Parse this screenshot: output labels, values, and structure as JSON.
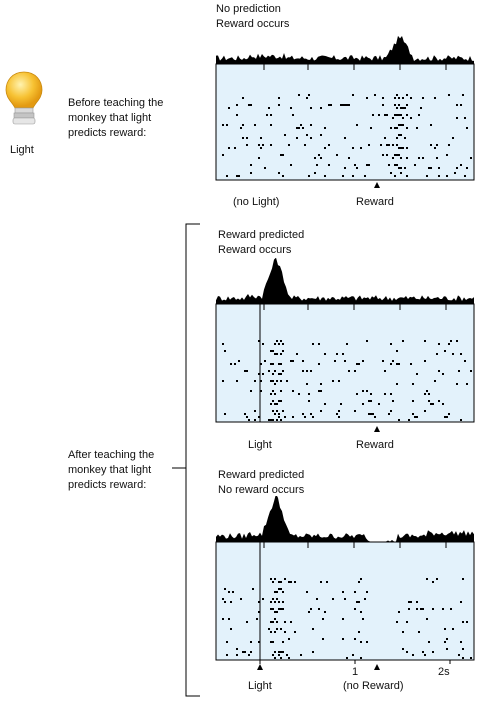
{
  "sidebar": {
    "light_icon_label": "Light",
    "before_text": "Before teaching the\nmonkey that light\npredicts reward:",
    "after_text": "After teaching the\nmonkey that light\npredicts reward:"
  },
  "panels": [
    {
      "title_line1": "No prediction",
      "title_line2": "Reward occurs",
      "axis_labels": [
        "(no Light)",
        "Reward"
      ],
      "has_light_line": false,
      "time_ticks": [],
      "colors": {
        "background": "#e3f2fb",
        "ink": "#000000"
      }
    },
    {
      "title_line1": "Reward predicted",
      "title_line2": "Reward occurs",
      "axis_labels": [
        "Light",
        "Reward"
      ],
      "has_light_line": true,
      "time_ticks": [],
      "colors": {
        "background": "#e3f2fb",
        "ink": "#000000"
      }
    },
    {
      "title_line1": "Reward predicted",
      "title_line2": "No reward occurs",
      "axis_labels": [
        "Light",
        "(no Reward)"
      ],
      "has_light_line": true,
      "time_ticks": [
        "1",
        "2s"
      ],
      "colors": {
        "background": "#e3f2fb",
        "ink": "#000000"
      }
    }
  ]
}
